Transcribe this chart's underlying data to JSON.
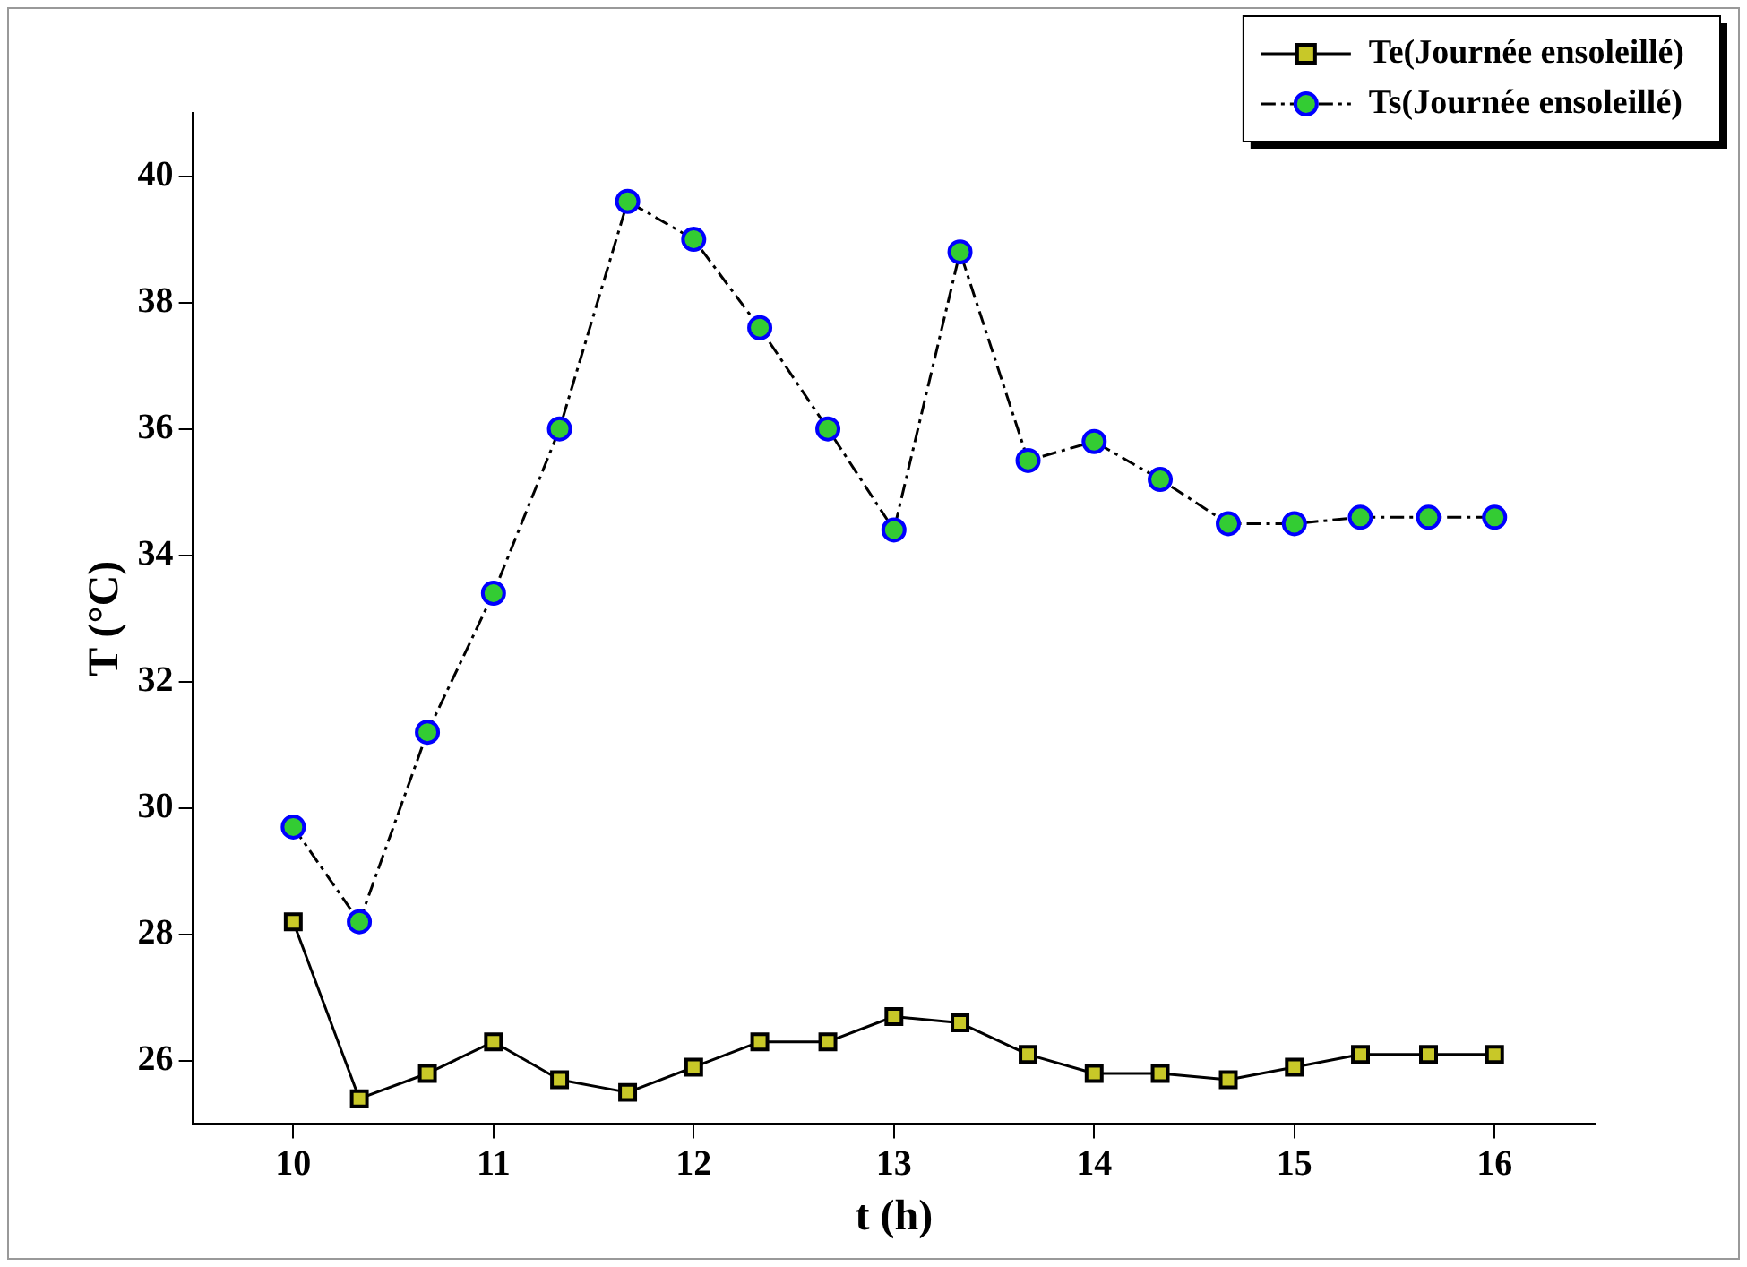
{
  "chart_data": {
    "type": "line",
    "xlabel": "t (h)",
    "ylabel": "T (°C)",
    "x": [
      10,
      10.33,
      10.67,
      11,
      11.33,
      11.67,
      12,
      12.33,
      12.67,
      13,
      13.33,
      13.67,
      14,
      14.33,
      14.67,
      15,
      15.33,
      15.67,
      16
    ],
    "series": [
      {
        "name": "Te(Journée ensoleillé)",
        "color": "#c8c828",
        "marker": "square",
        "line_style": "solid",
        "values": [
          28.2,
          25.4,
          25.8,
          26.3,
          25.7,
          25.5,
          25.9,
          26.3,
          26.3,
          26.7,
          26.6,
          26.1,
          25.8,
          25.8,
          25.7,
          25.9,
          26.1,
          26.1,
          26.1
        ]
      },
      {
        "name": "Ts(Journée ensoleillé)",
        "color": "#33cc33",
        "marker": "circle",
        "line_style": "dashed",
        "values": [
          29.7,
          28.2,
          31.2,
          33.4,
          36.0,
          39.6,
          39.0,
          37.6,
          36.0,
          34.4,
          38.8,
          35.5,
          35.8,
          35.2,
          34.5,
          34.5,
          34.6,
          34.6,
          34.6
        ]
      }
    ],
    "xlim": [
      9.5,
      16.5
    ],
    "xticks": [
      10,
      11,
      12,
      13,
      14,
      15,
      16
    ],
    "ylim": [
      25,
      41
    ],
    "yticks": [
      26,
      28,
      30,
      32,
      34,
      36,
      38,
      40
    ],
    "grid": false,
    "legend": "top right"
  }
}
